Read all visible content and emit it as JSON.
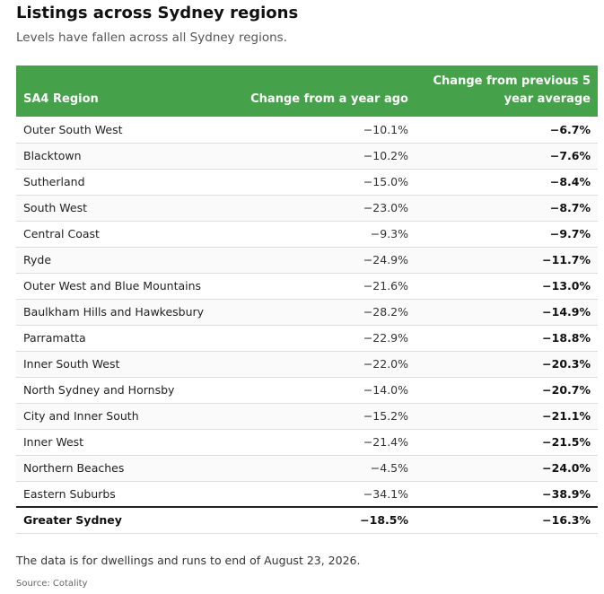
{
  "title": "Listings across Sydney regions",
  "subtitle": "Levels have fallen across all Sydney regions.",
  "colors": {
    "header_bg": "#46a24a",
    "header_text": "#ffffff"
  },
  "table": {
    "headers": {
      "region": "SA4 Region",
      "year_ago": "Change from a year ago",
      "avg5": "Change from previous 5 year average"
    },
    "rows": [
      {
        "region": "Outer South West",
        "year_ago": "−10.1%",
        "avg5": "−6.7%"
      },
      {
        "region": "Blacktown",
        "year_ago": "−10.2%",
        "avg5": "−7.6%"
      },
      {
        "region": "Sutherland",
        "year_ago": "−15.0%",
        "avg5": "−8.4%"
      },
      {
        "region": "South West",
        "year_ago": "−23.0%",
        "avg5": "−8.7%"
      },
      {
        "region": "Central Coast",
        "year_ago": "−9.3%",
        "avg5": "−9.7%"
      },
      {
        "region": "Ryde",
        "year_ago": "−24.9%",
        "avg5": "−11.7%"
      },
      {
        "region": "Outer West and Blue Mountains",
        "year_ago": "−21.6%",
        "avg5": "−13.0%"
      },
      {
        "region": "Baulkham Hills and Hawkesbury",
        "year_ago": "−28.2%",
        "avg5": "−14.9%"
      },
      {
        "region": "Parramatta",
        "year_ago": "−22.9%",
        "avg5": "−18.8%"
      },
      {
        "region": "Inner South West",
        "year_ago": "−22.0%",
        "avg5": "−20.3%"
      },
      {
        "region": "North Sydney and Hornsby",
        "year_ago": "−14.0%",
        "avg5": "−20.7%"
      },
      {
        "region": "City and Inner South",
        "year_ago": "−15.2%",
        "avg5": "−21.1%"
      },
      {
        "region": "Inner West",
        "year_ago": "−21.4%",
        "avg5": "−21.5%"
      },
      {
        "region": "Northern Beaches",
        "year_ago": "−4.5%",
        "avg5": "−24.0%"
      },
      {
        "region": "Eastern Suburbs",
        "year_ago": "−34.1%",
        "avg5": "−38.9%"
      }
    ],
    "total": {
      "region": "Greater Sydney",
      "year_ago": "−18.5%",
      "avg5": "−16.3%"
    }
  },
  "note": "The data is for dwellings and runs to end of August 23, 2026.",
  "source": "Source: Cotality",
  "chart_data": {
    "type": "table",
    "title": "Listings across Sydney regions",
    "subtitle": "Levels have fallen across all Sydney regions.",
    "columns": [
      "SA4 Region",
      "Change from a year ago",
      "Change from previous 5 year average"
    ],
    "categories": [
      "Outer South West",
      "Blacktown",
      "Sutherland",
      "South West",
      "Central Coast",
      "Ryde",
      "Outer West and Blue Mountains",
      "Baulkham Hills and Hawkesbury",
      "Parramatta",
      "Inner South West",
      "North Sydney and Hornsby",
      "City and Inner South",
      "Inner West",
      "Northern Beaches",
      "Eastern Suburbs",
      "Greater Sydney"
    ],
    "series": [
      {
        "name": "Change from a year ago",
        "values": [
          -10.1,
          -10.2,
          -15.0,
          -23.0,
          -9.3,
          -24.9,
          -21.6,
          -28.2,
          -22.9,
          -22.0,
          -14.0,
          -15.2,
          -21.4,
          -4.5,
          -34.1,
          -18.5
        ]
      },
      {
        "name": "Change from previous 5 year average",
        "values": [
          -6.7,
          -7.6,
          -8.4,
          -8.7,
          -9.7,
          -11.7,
          -13.0,
          -14.9,
          -18.8,
          -20.3,
          -20.7,
          -21.1,
          -21.5,
          -24.0,
          -38.9,
          -16.3
        ]
      }
    ]
  }
}
